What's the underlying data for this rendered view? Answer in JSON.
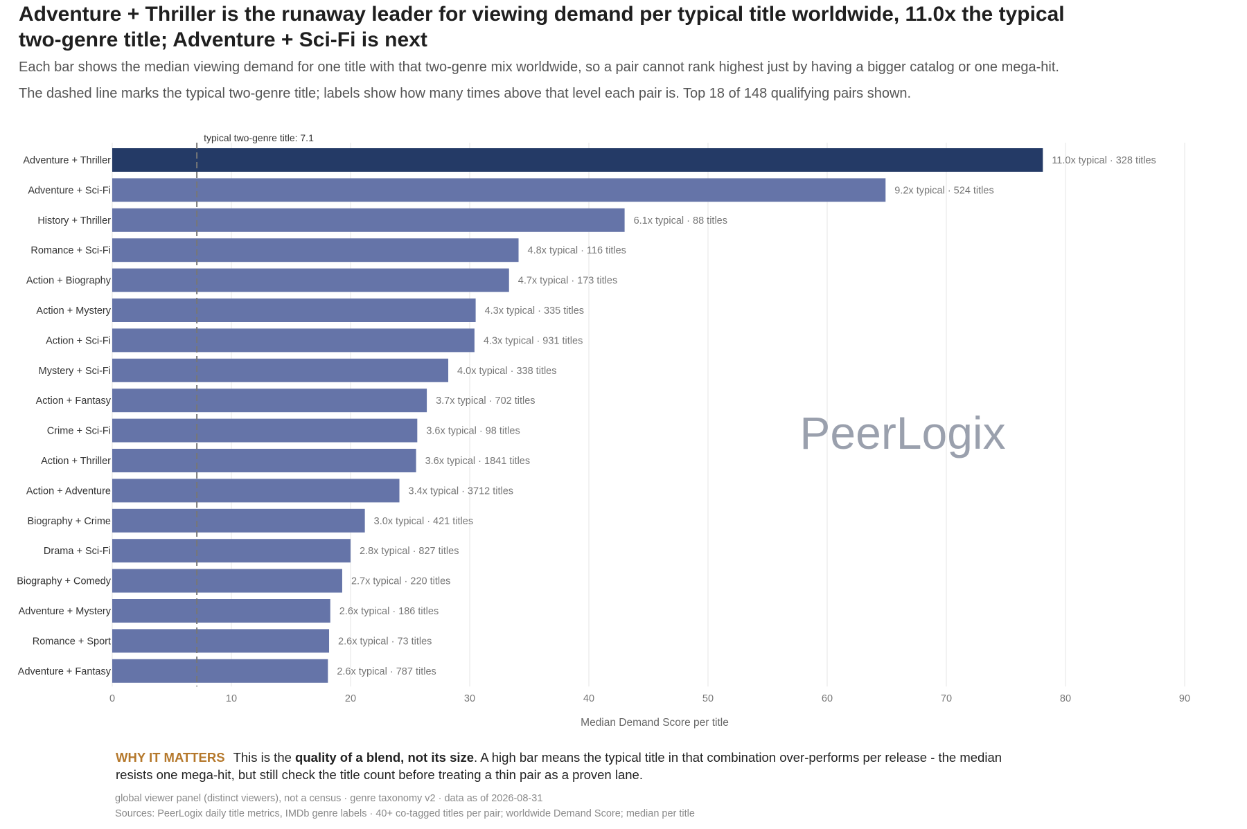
{
  "title": "Adventure + Thriller is the runaway leader for viewing demand per typical title worldwide, 11.0x the typical two-genre title; Adventure + Sci-Fi is next",
  "subtitle_1": "Each bar shows the median viewing demand for one title with that two-genre mix worldwide, so a pair cannot rank highest just by having a bigger catalog or one mega-hit.",
  "subtitle_2": "The dashed line marks the typical two-genre title; labels show how many times above that level each pair is. Top 18 of 148 qualifying pairs shown.",
  "watermark": "PeerLogix",
  "why_it_matters": {
    "label": "WHY IT MATTERS",
    "text_before": "This is the ",
    "text_bold": "quality of a blend, not its size",
    "text_after": ". A high bar means the typical title in that combination over-performs per release - the median resists one mega-hit, but still check the title count before treating a thin pair as a proven lane."
  },
  "footnote_1": "global viewer panel (distinct viewers), not a census · genre taxonomy v2 · data as of 2026-08-31",
  "footnote_2": "Sources: PeerLogix daily title metrics, IMDb genre labels · 40+ co-tagged titles per pair; worldwide Demand Score; median per title",
  "colors": {
    "highlight_bar": "#243a66",
    "bar": "#6574a8",
    "reference_line": "#777777",
    "grid": "#e6e6e6",
    "watermark": "#9aa0ad",
    "accent_label": "#b5782b"
  },
  "chart_data": {
    "type": "bar",
    "orientation": "horizontal",
    "xlabel": "Median Demand Score per title",
    "xlim": [
      0,
      90
    ],
    "xticks": [
      0,
      10,
      20,
      30,
      40,
      50,
      60,
      70,
      80,
      90
    ],
    "grid": "vertical",
    "reference_line": {
      "value": 7.1,
      "label": "typical two-genre title: 7.1",
      "style": "dashed"
    },
    "categories": [
      "Adventure + Thriller",
      "Adventure + Sci-Fi",
      "History + Thriller",
      "Romance + Sci-Fi",
      "Action + Biography",
      "Action + Mystery",
      "Action + Sci-Fi",
      "Mystery + Sci-Fi",
      "Action + Fantasy",
      "Crime + Sci-Fi",
      "Action + Thriller",
      "Action + Adventure",
      "Biography + Crime",
      "Drama + Sci-Fi",
      "Biography + Comedy",
      "Adventure + Mystery",
      "Romance + Sport",
      "Adventure + Fantasy"
    ],
    "values": [
      78.1,
      64.9,
      43.0,
      34.1,
      33.3,
      30.5,
      30.4,
      28.2,
      26.4,
      25.6,
      25.5,
      24.1,
      21.2,
      20.0,
      19.3,
      18.3,
      18.2,
      18.1
    ],
    "highlighted": [
      "Adventure + Thriller"
    ],
    "bar_labels": [
      "11.0x typical · 328 titles",
      "9.2x typical · 524 titles",
      "6.1x typical · 88 titles",
      "4.8x typical · 116 titles",
      "4.7x typical · 173 titles",
      "4.3x typical · 335 titles",
      "4.3x typical · 931 titles",
      "4.0x typical · 338 titles",
      "3.7x typical · 702 titles",
      "3.6x typical · 98 titles",
      "3.6x typical · 1841 titles",
      "3.4x typical · 3712 titles",
      "3.0x typical · 421 titles",
      "2.8x typical · 827 titles",
      "2.7x typical · 220 titles",
      "2.6x typical · 186 titles",
      "2.6x typical · 73 titles",
      "2.6x typical · 787 titles"
    ]
  }
}
